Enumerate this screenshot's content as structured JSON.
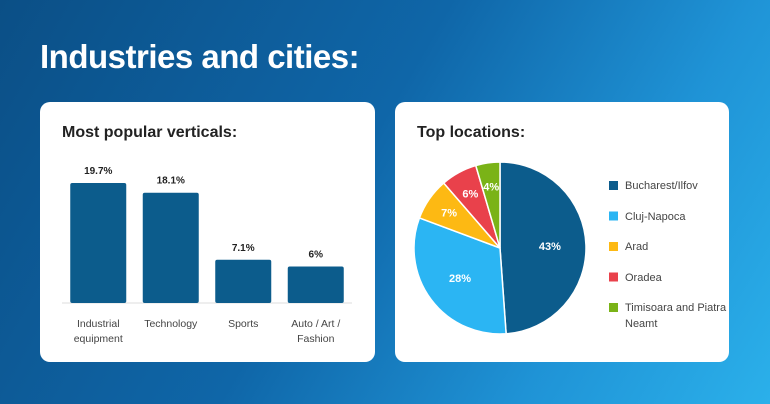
{
  "title": "Industries and cities:",
  "chart_data": [
    {
      "type": "bar",
      "title": "Most popular verticals:",
      "categories": [
        "Industrial equipment",
        "Technology",
        "Sports",
        "Auto / Art / Fashion"
      ],
      "values": [
        19.7,
        18.1,
        7.1,
        6
      ],
      "value_labels": [
        "19.7%",
        "18.1%",
        "7.1%",
        "6%"
      ],
      "color": "#0c5c8c"
    },
    {
      "type": "pie",
      "title": "Top locations:",
      "categories": [
        "Bucharest/Ilfov",
        "Cluj-Napoca",
        "Arad",
        "Oradea",
        "Timisoara and Piatra Neamt"
      ],
      "values": [
        43,
        28,
        7,
        6,
        4
      ],
      "value_labels": [
        "43%",
        "28%",
        "7%",
        "6%",
        "4%"
      ],
      "colors": [
        "#0c5c8c",
        "#2bb5f3",
        "#fdb913",
        "#e9414b",
        "#7ab317"
      ],
      "legend": "right"
    }
  ]
}
